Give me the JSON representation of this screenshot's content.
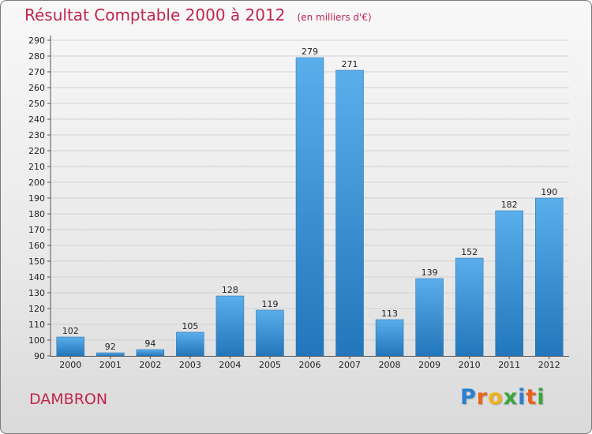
{
  "chart_data": {
    "type": "bar",
    "title": "Résultat Comptable 2000 à 2012",
    "subtitle": "(en milliers d'€)",
    "categories": [
      "2000",
      "2001",
      "2002",
      "2003",
      "2004",
      "2005",
      "2006",
      "2007",
      "2008",
      "2009",
      "2010",
      "2011",
      "2012"
    ],
    "values": [
      102,
      92,
      94,
      105,
      128,
      119,
      279,
      271,
      113,
      139,
      152,
      182,
      190
    ],
    "ylim": [
      90,
      290
    ],
    "yticks": [
      90,
      100,
      110,
      120,
      130,
      140,
      150,
      160,
      170,
      180,
      190,
      200,
      210,
      220,
      230,
      240,
      250,
      260,
      270,
      280,
      290
    ],
    "xlabel": "",
    "ylabel": "",
    "grid": true,
    "bar_color": "#3d8fd3"
  },
  "footer": {
    "commune": "DAMBRON"
  },
  "brand": {
    "letters": [
      "P",
      "r",
      "o",
      "x",
      "i",
      "t",
      "i"
    ],
    "colors": [
      "#2b7fd1",
      "#e8641b",
      "#f0b21a",
      "#3aa53a",
      "#2b7fd1",
      "#e8641b",
      "#3aa53a"
    ]
  }
}
